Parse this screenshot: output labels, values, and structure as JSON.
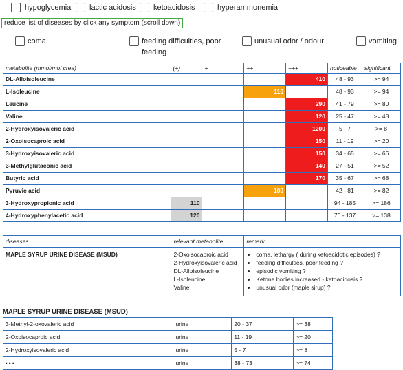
{
  "conditions": [
    {
      "label": "hypoglycemia"
    },
    {
      "label": "lactic acidosis"
    },
    {
      "label": "ketoacidosis"
    },
    {
      "label": "hyperammonemia"
    }
  ],
  "hint": "reduce list of diseases by click any symptom (scroll down)",
  "symptoms": [
    {
      "label": "coma"
    },
    {
      "label": "feeding difficulties, poor feeding"
    },
    {
      "label": "unusual odor / odour"
    },
    {
      "label": "vomiting"
    }
  ],
  "metabolite_table": {
    "headers": [
      "metabolite (mmol/mol crea)",
      "(+)",
      "+",
      "++",
      "+++",
      "noticeable",
      "significant"
    ],
    "rows": [
      {
        "name": "DL-Alloisoleucine",
        "value": "410",
        "level": "+++",
        "color": "red",
        "noticeable": "48 - 93",
        "significant": ">= 94"
      },
      {
        "name": "L-Isoleucine",
        "value": "110",
        "level": "++",
        "color": "orange",
        "noticeable": "48 - 93",
        "significant": ">= 94"
      },
      {
        "name": "Leucine",
        "value": "290",
        "level": "+++",
        "color": "red",
        "noticeable": "41 - 79",
        "significant": ">= 80"
      },
      {
        "name": "Valine",
        "value": "120",
        "level": "+++",
        "color": "red",
        "noticeable": "25 - 47",
        "significant": ">= 48"
      },
      {
        "name": "2-Hydroxyisovaleric acid",
        "value": "1200",
        "level": "+++",
        "color": "red",
        "noticeable": "5 - 7",
        "significant": ">= 8"
      },
      {
        "name": "2-Oxoisocaproic acid",
        "value": "150",
        "level": "+++",
        "color": "red",
        "noticeable": "11 - 19",
        "significant": ">= 20"
      },
      {
        "name": "3-Hydroxyisovaleric acid",
        "value": "150",
        "level": "+++",
        "color": "red",
        "noticeable": "34 - 65",
        "significant": ">= 66"
      },
      {
        "name": "3-Methylglutaconic acid",
        "value": "140",
        "level": "+++",
        "color": "red",
        "noticeable": "27 - 51",
        "significant": ">= 52"
      },
      {
        "name": "Butyric acid",
        "value": "170",
        "level": "+++",
        "color": "red",
        "noticeable": "35 - 67",
        "significant": ">= 68"
      },
      {
        "name": "Pyruvic acid",
        "value": "100",
        "level": "++",
        "color": "orange",
        "noticeable": "42 - 81",
        "significant": ">= 82"
      },
      {
        "name": "3-Hydroxypropionic acid",
        "value": "110",
        "level": "(+)",
        "color": "gray",
        "noticeable": "94 - 185",
        "significant": ">= 186"
      },
      {
        "name": "4-Hydroxyphenylacetic acid",
        "value": "120",
        "level": "(+)",
        "color": "gray",
        "noticeable": "70 - 137",
        "significant": ">= 138"
      }
    ]
  },
  "colors": {
    "red": "#ee1c1c",
    "orange": "#f7a20d",
    "gray": "#d3d3d3",
    "border": "#2e6ebd"
  },
  "disease_table": {
    "headers": [
      "diseases",
      "relevant metabolite",
      "remark"
    ],
    "rows": [
      {
        "disease": "MAPLE SYRUP URINE DISEASE (MSUD)",
        "metabolites": [
          "2-Oxoisocaproic acid",
          "2-Hydroxyisovaleric acid",
          "DL-Alloisoleucine",
          "L-Isoleucine",
          "Valine"
        ],
        "remarks": [
          "coma, lethargy ( during ketoacidotic episodes) ?",
          "feeding difficulties, poor feeding ?",
          "episodic vomiting ?",
          "Ketone bodies increased - ketoacidosis ?",
          "unusual odor (maple sirup) ?"
        ]
      }
    ]
  },
  "detail": {
    "title": "MAPLE SYRUP URINE DISEASE (MSUD)",
    "rows": [
      {
        "metabolite": "3-Methyl-2-oxovaleric acid",
        "specimen": "urine",
        "range": "20 - 37",
        "threshold": ">= 38"
      },
      {
        "metabolite": "2-Oxoisocaproic acid",
        "specimen": "urine",
        "range": "11 - 19",
        "threshold": ">= 20"
      },
      {
        "metabolite": "2-Hydroxyisovaleric acid",
        "specimen": "urine",
        "range": "5 - 7",
        "threshold": ">= 8"
      },
      {
        "metabolite": "",
        "specimen": "urine",
        "range": "38 - 73",
        "threshold": ">= 74"
      }
    ],
    "more": "..."
  }
}
